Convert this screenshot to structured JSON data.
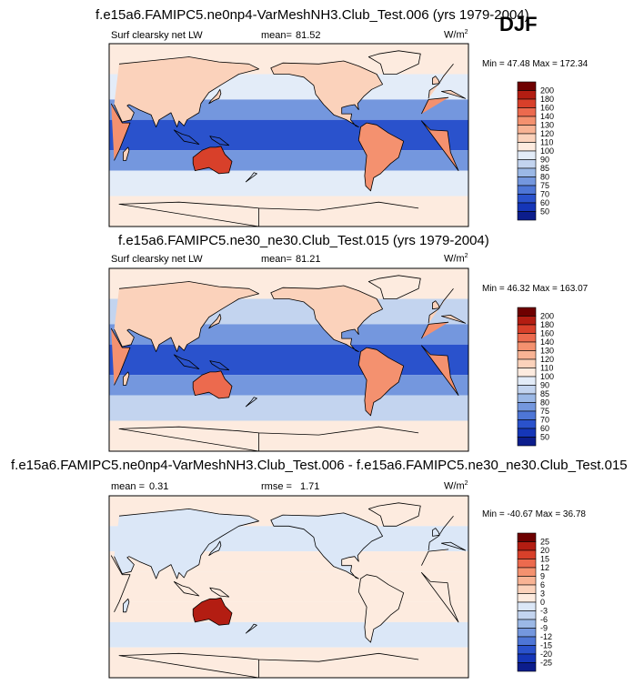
{
  "season": "DJF",
  "panels": [
    {
      "title": "f.e15a6.FAMIPC5.ne0np4-VarMeshNH3.Club_Test.006 (yrs 1979-2004)",
      "left_label": "Surf clearsky net LW",
      "mean_label": "mean=",
      "mean_value": "81.52",
      "units": "W/m",
      "units_sup": "2",
      "minmax": "Min = 47.48 Max = 172.34",
      "scale": "abs",
      "regions": {
        "tropics": 60,
        "subtrop": 78,
        "midlat": 90,
        "polar": 105,
        "land_hot": 135,
        "land_warm": 112,
        "desert": 160
      }
    },
    {
      "title": "f.e15a6.FAMIPC5.ne30_ne30.Club_Test.015 (yrs 1979-2004)",
      "left_label": "Surf clearsky net LW",
      "mean_label": "mean=",
      "mean_value": "81.21",
      "units": "W/m",
      "units_sup": "2",
      "minmax": "Min = 46.32 Max = 163.07",
      "scale": "abs",
      "regions": {
        "tropics": 60,
        "subtrop": 78,
        "midlat": 88,
        "polar": 105,
        "land_hot": 132,
        "land_warm": 112,
        "desert": 155
      }
    },
    {
      "title": "f.e15a6.FAMIPC5.ne0np4-VarMeshNH3.Club_Test.006 - f.e15a6.FAMIPC5.ne30_ne30.Club_Test.015",
      "left_label": "mean =",
      "mean_label": "rmse =",
      "left_value": "0.31",
      "mean_value": "1.71",
      "units": "W/m",
      "units_sup": "2",
      "minmax": "Min = -40.67 Max = 36.78",
      "scale": "diff",
      "regions": {
        "tropics": 1,
        "subtrop": 1,
        "midlat": -2,
        "polar": 1,
        "land_hot": 2,
        "land_warm": -2,
        "desert": 20
      }
    }
  ],
  "colorbars": {
    "abs": {
      "labels": [
        "200",
        "180",
        "160",
        "140",
        "130",
        "120",
        "110",
        "100",
        "90",
        "85",
        "80",
        "75",
        "70",
        "60",
        "50"
      ],
      "colors": [
        "#6e0000",
        "#b31d12",
        "#d8402a",
        "#ec6a4e",
        "#f4916f",
        "#f8b394",
        "#fbd2bb",
        "#fdebdf",
        "#e3ecf8",
        "#c3d4ef",
        "#9bb8e6",
        "#7497de",
        "#4e76d6",
        "#2a52cc",
        "#1536b8",
        "#0c1d8c"
      ]
    },
    "diff": {
      "labels": [
        "25",
        "20",
        "15",
        "12",
        "9",
        "6",
        "3",
        "0",
        "-3",
        "-6",
        "-9",
        "-12",
        "-15",
        "-20",
        "-25"
      ],
      "colors": [
        "#6e0000",
        "#b31d12",
        "#d8402a",
        "#ec6a4e",
        "#f4916f",
        "#f8b394",
        "#fbd2bb",
        "#fdebdf",
        "#dbe7f7",
        "#c3d4ef",
        "#9bb8e6",
        "#7497de",
        "#4e76d6",
        "#2a52cc",
        "#1536b8",
        "#0c1d8c"
      ]
    }
  }
}
